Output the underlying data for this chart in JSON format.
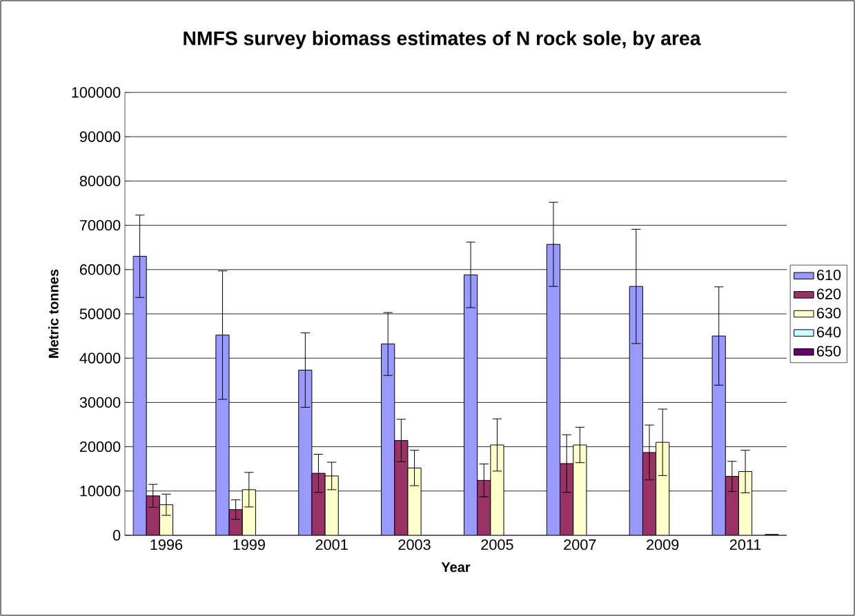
{
  "chart_data": {
    "type": "bar",
    "title": "NMFS survey biomass estimates of N rock sole, by area",
    "xlabel": "Year",
    "ylabel": "Metric tonnes",
    "categories": [
      "1996",
      "1999",
      "2001",
      "2003",
      "2005",
      "2007",
      "2009",
      "2011"
    ],
    "series": [
      {
        "name": "610",
        "color": "#9999ff",
        "values": [
          63000,
          45200,
          37300,
          43200,
          58800,
          65700,
          56200,
          45000
        ],
        "errors": [
          9300,
          14500,
          8400,
          7100,
          7400,
          9500,
          12900,
          11100
        ]
      },
      {
        "name": "620",
        "color": "#993366",
        "values": [
          8900,
          5800,
          14000,
          21400,
          12400,
          16200,
          18700,
          13300
        ],
        "errors": [
          2600,
          2200,
          4300,
          4800,
          3700,
          6500,
          6200,
          3400
        ]
      },
      {
        "name": "630",
        "color": "#ffffcc",
        "values": [
          6900,
          10300,
          13400,
          15200,
          20400,
          20400,
          21000,
          14400
        ],
        "errors": [
          2400,
          3900,
          3100,
          4000,
          5900,
          4000,
          7500,
          4800
        ]
      },
      {
        "name": "640",
        "color": "#ccffff",
        "values": [
          null,
          null,
          null,
          null,
          null,
          null,
          null,
          null
        ]
      },
      {
        "name": "650",
        "color": "#660066",
        "values": [
          null,
          null,
          null,
          null,
          null,
          null,
          null,
          200
        ]
      }
    ],
    "ylim": [
      0,
      100000
    ],
    "yticks": [
      0,
      10000,
      20000,
      30000,
      40000,
      50000,
      60000,
      70000,
      80000,
      90000,
      100000
    ],
    "grid": "y",
    "legend": "right"
  }
}
